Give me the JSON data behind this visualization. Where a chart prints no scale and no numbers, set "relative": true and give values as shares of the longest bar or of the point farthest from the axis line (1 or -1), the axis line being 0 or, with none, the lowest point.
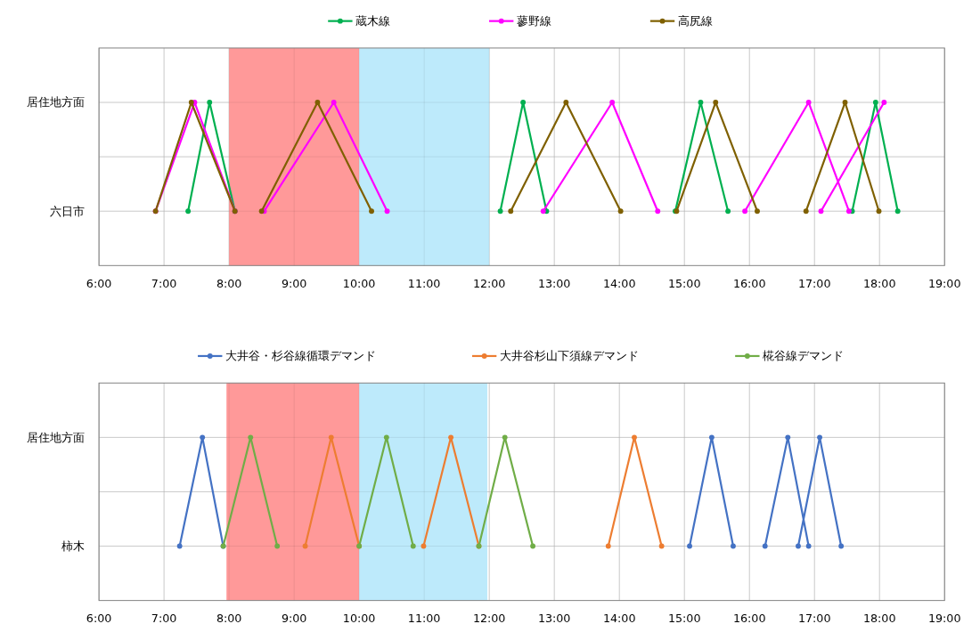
{
  "chart_data": [
    {
      "type": "line",
      "relative": true,
      "legend": "top",
      "marker": "circle",
      "grid": true,
      "xlim": [
        6,
        19
      ],
      "xticks": [
        {
          "value": 6,
          "label": "6:00"
        },
        {
          "value": 7,
          "label": "7:00"
        },
        {
          "value": 8,
          "label": "8:00"
        },
        {
          "value": 9,
          "label": "9:00"
        },
        {
          "value": 10,
          "label": "10:00"
        },
        {
          "value": 11,
          "label": "11:00"
        },
        {
          "value": 12,
          "label": "12:00"
        },
        {
          "value": 13,
          "label": "13:00"
        },
        {
          "value": 14,
          "label": "14:00"
        },
        {
          "value": 15,
          "label": "15:00"
        },
        {
          "value": 16,
          "label": "16:00"
        },
        {
          "value": 17,
          "label": "17:00"
        },
        {
          "value": 18,
          "label": "18:00"
        },
        {
          "value": 19,
          "label": "19:00"
        }
      ],
      "annotations": [
        "居住地方面",
        "六日市"
      ],
      "bands": [
        {
          "axis": "x",
          "from": 8,
          "to": 10,
          "color": "#ff9999"
        },
        {
          "axis": "x",
          "from": 10,
          "to": 12,
          "color": "#bdeafb"
        }
      ],
      "series": [
        {
          "name": "蔵木線",
          "color": "#00b050",
          "x": [
            7.37,
            7.7,
            8.09,
            10,
            12.17,
            12.52,
            12.88,
            14,
            14.86,
            15.25,
            15.67,
            16.5,
            17.58,
            17.94,
            18.28
          ],
          "values": [
            0,
            1,
            0,
            null,
            0,
            1,
            0,
            null,
            0,
            1,
            0,
            null,
            0,
            1,
            0
          ]
        },
        {
          "name": "蓼野線",
          "color": "#ff00ff",
          "x": [
            6.87,
            7.47,
            8.09,
            8.3,
            8.54,
            9.61,
            10.43,
            11,
            12.83,
            13.89,
            14.59,
            15,
            15.93,
            16.91,
            17.53,
            17.3,
            17.1,
            18.07
          ],
          "values": [
            0,
            1,
            0,
            null,
            0,
            1,
            0,
            null,
            0,
            1,
            0,
            null,
            0,
            1,
            0,
            null,
            0,
            1
          ]
        },
        {
          "name": "高尻線",
          "color": "#7f6000",
          "x": [
            6.87,
            7.42,
            8.09,
            8.3,
            8.5,
            9.36,
            10.19,
            11,
            12.33,
            13.18,
            14.02,
            14.5,
            14.88,
            15.48,
            16.12,
            16.5,
            16.87,
            17.47,
            17.99
          ],
          "values": [
            0,
            1,
            0,
            null,
            0,
            1,
            0,
            null,
            0,
            1,
            0,
            null,
            0,
            1,
            0,
            null,
            0,
            1,
            0
          ]
        }
      ]
    },
    {
      "type": "line",
      "relative": true,
      "legend": "top",
      "marker": "circle",
      "grid": true,
      "xlim": [
        6,
        19
      ],
      "xticks": [
        {
          "value": 6,
          "label": "6:00"
        },
        {
          "value": 7,
          "label": "7:00"
        },
        {
          "value": 8,
          "label": "8:00"
        },
        {
          "value": 9,
          "label": "9:00"
        },
        {
          "value": 10,
          "label": "10:00"
        },
        {
          "value": 11,
          "label": "11:00"
        },
        {
          "value": 12,
          "label": "12:00"
        },
        {
          "value": 13,
          "label": "13:00"
        },
        {
          "value": 14,
          "label": "14:00"
        },
        {
          "value": 15,
          "label": "15:00"
        },
        {
          "value": 16,
          "label": "16:00"
        },
        {
          "value": 17,
          "label": "17:00"
        },
        {
          "value": 18,
          "label": "18:00"
        },
        {
          "value": 19,
          "label": "19:00"
        }
      ],
      "annotations": [
        "居住地方面",
        "柿木"
      ],
      "bands": [
        {
          "axis": "x",
          "from": 7.96,
          "to": 10,
          "color": "#ff9999"
        },
        {
          "axis": "x",
          "from": 10,
          "to": 11.97,
          "color": "#bdeafb"
        }
      ],
      "series": [
        {
          "name": "大井谷・杉谷線循環デマンド",
          "color": "#4472c4",
          "x": [
            7.24,
            7.59,
            7.91,
            11,
            15.08,
            15.42,
            15.75,
            16,
            16.24,
            16.59,
            16.91,
            16.8,
            16.75,
            17.08,
            17.41
          ],
          "values": [
            0,
            1,
            0,
            null,
            0,
            1,
            0,
            null,
            0,
            1,
            0,
            null,
            0,
            1,
            0
          ]
        },
        {
          "name": "大井谷杉山下須線デマンド",
          "color": "#ed7d31",
          "x": [
            9.17,
            9.57,
            10.0,
            10.5,
            10.99,
            11.41,
            11.84,
            13,
            13.83,
            14.23,
            14.65
          ],
          "values": [
            0,
            1,
            0,
            null,
            0,
            1,
            0,
            null,
            0,
            1,
            0
          ]
        },
        {
          "name": "椛谷線デマンド",
          "color": "#70ad47",
          "x": [
            7.91,
            8.33,
            8.74,
            9.5,
            10.0,
            10.42,
            10.83,
            11.3,
            11.84,
            12.24,
            12.67
          ],
          "values": [
            0,
            1,
            0,
            null,
            0,
            1,
            0,
            null,
            0,
            1,
            0
          ]
        }
      ]
    }
  ]
}
